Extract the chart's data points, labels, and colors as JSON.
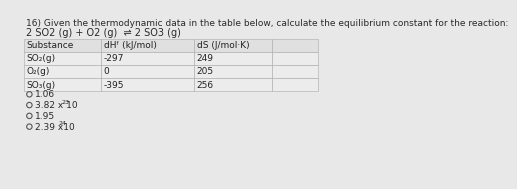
{
  "title": "16) Given the thermodynamic data in the table below, calculate the equilibrium constant for the reaction:",
  "reaction": "2 SO2 (g) + O2 (g)  ⇌ 2 SO3 (g)",
  "col_headers": [
    "Substance",
    "dHᶠ (kJ/mol)",
    "dS (J/mol·K)",
    ""
  ],
  "row_data": [
    [
      "SO₂(g)",
      "-297",
      "249",
      ""
    ],
    [
      "O₂(g)",
      "0",
      "205",
      ""
    ],
    [
      "SO₃(g)",
      "-395",
      "256",
      ""
    ]
  ],
  "options": [
    "1.06",
    "3.82 x 10^23",
    "1.95",
    "2.39 x10^24"
  ],
  "bg_color": "#e8e8e8",
  "table_bg": "#e0e0e0",
  "cell_bg": "#ececec",
  "font_size": 6.5,
  "title_font_size": 6.5,
  "reaction_font_size": 7.0,
  "option_font_size": 6.5
}
